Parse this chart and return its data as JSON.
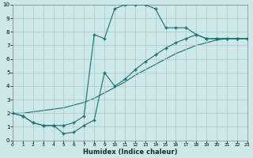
{
  "xlabel": "Humidex (Indice chaleur)",
  "background_color": "#cce8e8",
  "grid_color": "#b0cccc",
  "line_color": "#1a7070",
  "xlim": [
    0,
    23
  ],
  "ylim": [
    0,
    10
  ],
  "xticks": [
    0,
    1,
    2,
    3,
    4,
    5,
    6,
    7,
    8,
    9,
    10,
    11,
    12,
    13,
    14,
    15,
    16,
    17,
    18,
    19,
    20,
    21,
    22,
    23
  ],
  "yticks": [
    0,
    1,
    2,
    3,
    4,
    5,
    6,
    7,
    8,
    9,
    10
  ],
  "curve1_x": [
    0,
    1,
    2,
    3,
    4,
    5,
    6,
    7,
    8,
    9,
    10,
    11,
    12,
    13,
    14,
    15,
    16,
    17,
    18,
    19,
    20,
    21,
    22,
    23
  ],
  "curve1_y": [
    2.0,
    1.8,
    1.3,
    1.1,
    1.1,
    1.1,
    1.3,
    1.8,
    7.8,
    7.5,
    9.7,
    10.0,
    10.0,
    10.0,
    9.7,
    8.3,
    8.3,
    8.3,
    7.8,
    7.5,
    7.5,
    7.5,
    7.5,
    7.5
  ],
  "curve2_x": [
    0,
    1,
    2,
    3,
    4,
    5,
    6,
    7,
    8,
    9,
    10,
    11,
    12,
    13,
    14,
    15,
    16,
    17,
    18,
    19,
    20,
    21,
    22,
    23
  ],
  "curve2_y": [
    2.0,
    1.8,
    1.3,
    1.1,
    1.1,
    0.5,
    0.6,
    1.1,
    1.5,
    5.0,
    4.0,
    4.5,
    5.2,
    5.8,
    6.3,
    6.8,
    7.2,
    7.5,
    7.8,
    7.5,
    7.5,
    7.5,
    7.5,
    7.5
  ],
  "curve3_x": [
    0,
    1,
    2,
    3,
    4,
    5,
    6,
    7,
    8,
    9,
    10,
    11,
    12,
    13,
    14,
    15,
    16,
    17,
    18,
    19,
    20,
    21,
    22,
    23
  ],
  "curve3_y": [
    2.0,
    2.0,
    2.1,
    2.2,
    2.3,
    2.4,
    2.6,
    2.8,
    3.1,
    3.5,
    3.9,
    4.3,
    4.8,
    5.2,
    5.6,
    6.0,
    6.4,
    6.7,
    7.0,
    7.2,
    7.4,
    7.5,
    7.5,
    7.5
  ]
}
